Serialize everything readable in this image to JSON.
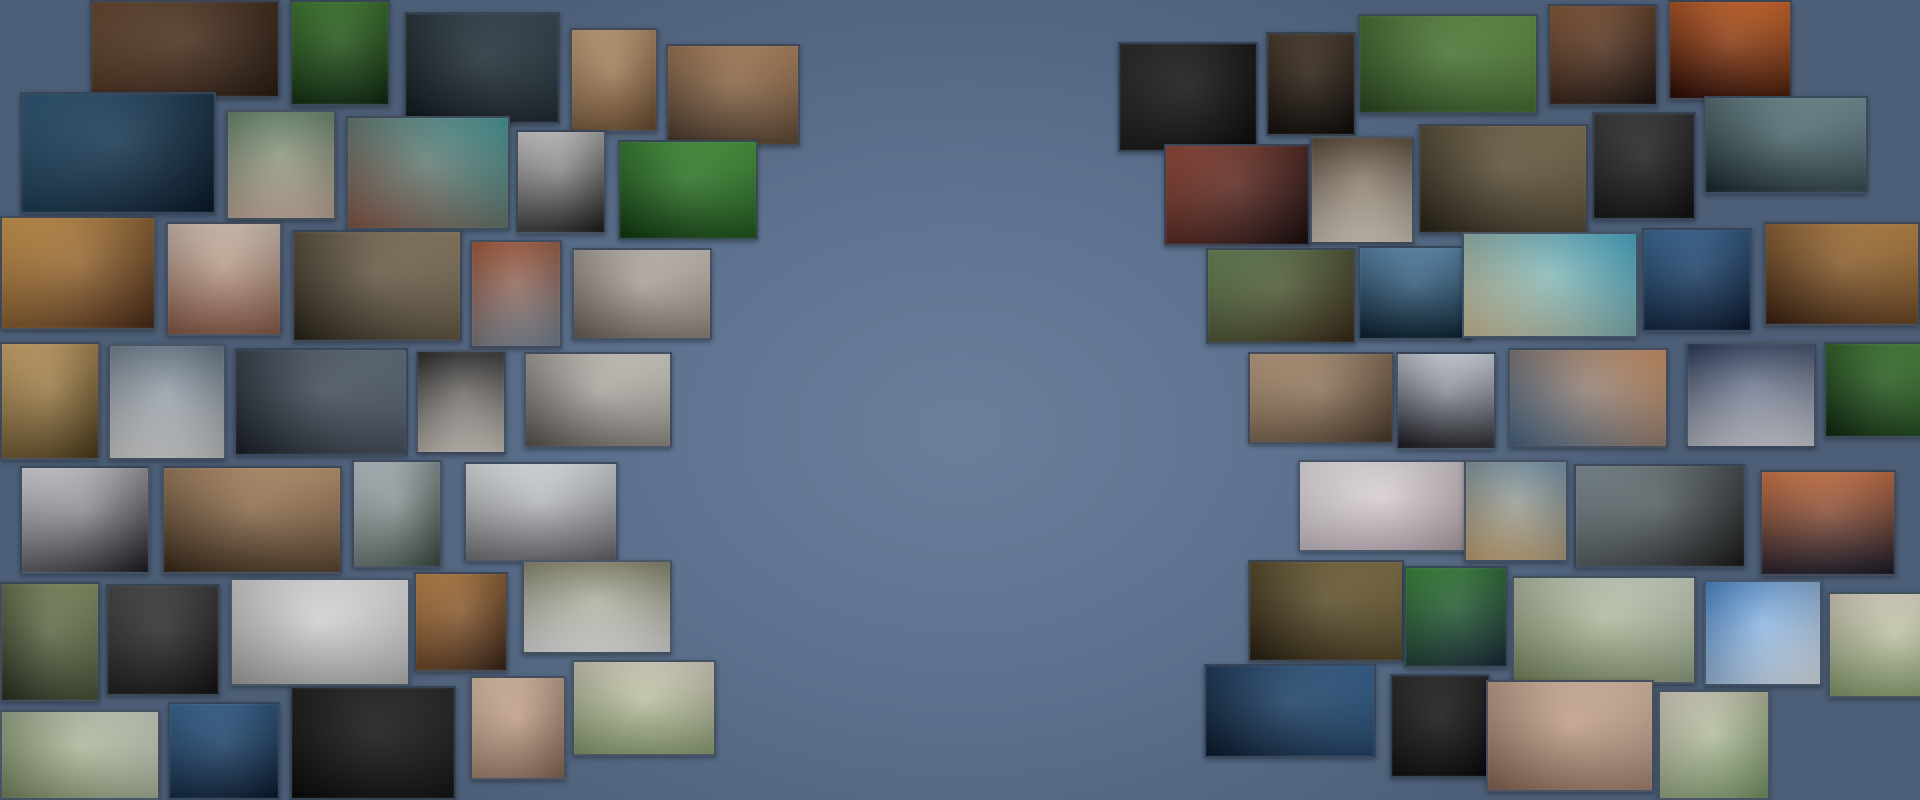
{
  "scene": {
    "background": "#5e7390",
    "frame_color": "#3a485c"
  },
  "walls": {
    "left": [
      {
        "subject": "medieval-crowd",
        "colors": [
          "#6b4a32",
          "#2a1c12"
        ]
      },
      {
        "subject": "peacock-feathers",
        "colors": [
          "#3f7a2e",
          "#0f2a10"
        ]
      },
      {
        "subject": "office-interior",
        "colors": [
          "#3a4a55",
          "#10181e"
        ]
      },
      {
        "subject": "white-suv",
        "colors": [
          "#c9a77e",
          "#6a4a2e"
        ]
      },
      {
        "subject": "hiker-mountains",
        "colors": [
          "#b88a62",
          "#4a3a2c"
        ]
      },
      {
        "subject": "underwater-whale",
        "colors": [
          "#2f5a7a",
          "#0a1a2a"
        ]
      },
      {
        "subject": "lakeside-village",
        "colors": [
          "#6a8a6e",
          "#c9b0a0"
        ]
      },
      {
        "subject": "mountain-lake-town",
        "colors": [
          "#4aa0a0",
          "#8a5a4a"
        ]
      },
      {
        "subject": "man-in-tuxedo",
        "colors": [
          "#d8d8d8",
          "#1a1a1a"
        ]
      },
      {
        "subject": "forest-waterfall",
        "colors": [
          "#4aa040",
          "#103a10"
        ]
      },
      {
        "subject": "wine-and-grapes",
        "colors": [
          "#d8a050",
          "#4a2a18"
        ]
      },
      {
        "subject": "man-on-beach",
        "colors": [
          "#d8c8b8",
          "#8a5a48"
        ]
      },
      {
        "subject": "old-woman-glasses",
        "colors": [
          "#9a8a70",
          "#2a2418"
        ]
      },
      {
        "subject": "mountain-hotel",
        "colors": [
          "#a85a3a",
          "#7a8a9a"
        ]
      },
      {
        "subject": "river-estuary",
        "colors": [
          "#d8d0c8",
          "#6a6258"
        ]
      },
      {
        "subject": "savanna-trees",
        "colors": [
          "#d8b070",
          "#4a3a1a"
        ]
      },
      {
        "subject": "white-jeep",
        "colors": [
          "#6a7a8a",
          "#d8d8d8"
        ]
      },
      {
        "subject": "silver-sports-car",
        "colors": [
          "#6a7888",
          "#1a2028"
        ]
      },
      {
        "subject": "runway-model",
        "colors": [
          "#2a2a2a",
          "#d8d0c8"
        ]
      },
      {
        "subject": "white-dog",
        "colors": [
          "#e8e4dc",
          "#5a5450"
        ]
      },
      {
        "subject": "white-cat-crown",
        "colors": [
          "#e8e8ec",
          "#1a1a22"
        ]
      },
      {
        "subject": "girl-headphones",
        "colors": [
          "#c8a078",
          "#3a2a1a"
        ]
      },
      {
        "subject": "snowy-mountain",
        "colors": [
          "#c8d0d8",
          "#3a4a40"
        ]
      },
      {
        "subject": "woman-in-snow",
        "colors": [
          "#e8ecf0",
          "#6a6a70"
        ]
      },
      {
        "subject": "dragon-head",
        "colors": [
          "#8a9a6a",
          "#2a3020"
        ]
      },
      {
        "subject": "runner-dark",
        "colors": [
          "#4a4a4a",
          "#121212"
        ]
      },
      {
        "subject": "bride-white-dress",
        "colors": [
          "#f0f0f0",
          "#a8a8a8"
        ]
      },
      {
        "subject": "grand-hall",
        "colors": [
          "#c88a4a",
          "#3a2418"
        ]
      },
      {
        "subject": "man-white-suit",
        "colors": [
          "#8a8a70",
          "#e8e8e8"
        ]
      },
      {
        "subject": "penguins-cats",
        "colors": [
          "#d8e0d0",
          "#7a8a60"
        ]
      },
      {
        "subject": "blue-parrot",
        "colors": [
          "#3a6a9a",
          "#0a1a30"
        ]
      },
      {
        "subject": "dark-forest",
        "colors": [
          "#2a2a2a",
          "#0a0a0a"
        ]
      },
      {
        "subject": "blonde-woman",
        "colors": [
          "#e8c8b0",
          "#8a6a58"
        ]
      },
      {
        "subject": "cats-and-flowers",
        "colors": [
          "#e0d8c8",
          "#8aa070"
        ]
      }
    ],
    "right": [
      {
        "subject": "dark-cave",
        "colors": [
          "#2a2a2a",
          "#0a0a0a"
        ]
      },
      {
        "subject": "candle-room",
        "colors": [
          "#4a3a2a",
          "#0e0a08"
        ]
      },
      {
        "subject": "green-valley-village",
        "colors": [
          "#6a9a4a",
          "#2a4a20"
        ]
      },
      {
        "subject": "robot-bear",
        "colors": [
          "#8a5a3a",
          "#1a1210"
        ]
      },
      {
        "subject": "fire-dancer",
        "colors": [
          "#d86a2a",
          "#2a0a04"
        ]
      },
      {
        "subject": "red-mountain-peaks",
        "colors": [
          "#9a4a3a",
          "#1a0e10"
        ]
      },
      {
        "subject": "snarling-dog",
        "colors": [
          "#5a4a3a",
          "#d8d0c0"
        ]
      },
      {
        "subject": "old-wizard-army",
        "colors": [
          "#8a7a5a",
          "#2a2418"
        ]
      },
      {
        "subject": "dark-haired-man",
        "colors": [
          "#3a3a3a",
          "#0e0e0e"
        ]
      },
      {
        "subject": "cave-explorer",
        "colors": [
          "#7a9aa0",
          "#1a2a2e"
        ]
      },
      {
        "subject": "bear-in-water",
        "colors": [
          "#6a8a5a",
          "#3a2a18"
        ]
      },
      {
        "subject": "blue-parrot",
        "colors": [
          "#5a8ab0",
          "#0a2030"
        ]
      },
      {
        "subject": "tropical-beach",
        "colors": [
          "#4ab0d0",
          "#d8c8a0"
        ]
      },
      {
        "subject": "futuristic-city",
        "colors": [
          "#3a6a9a",
          "#0a1830"
        ]
      },
      {
        "subject": "golden-skull",
        "colors": [
          "#c8904a",
          "#3a2010"
        ]
      },
      {
        "subject": "kitchen-girl",
        "colors": [
          "#c8a888",
          "#4a3a2a"
        ]
      },
      {
        "subject": "penguin",
        "colors": [
          "#d8e0e8",
          "#1a1a22"
        ]
      },
      {
        "subject": "eiffel-tower",
        "colors": [
          "#d89a6a",
          "#4a6a8a"
        ]
      },
      {
        "subject": "astronaut-space",
        "colors": [
          "#2a3a5a",
          "#d8d8e0"
        ]
      },
      {
        "subject": "forest-stream",
        "colors": [
          "#4a8a3a",
          "#0e2a10"
        ]
      },
      {
        "subject": "bride-flowers",
        "colors": [
          "#f0ecf0",
          "#b8a8b0"
        ]
      },
      {
        "subject": "robed-figure",
        "colors": [
          "#7a9ab0",
          "#c8a878"
        ]
      },
      {
        "subject": "darth-vader-rocks",
        "colors": [
          "#8a9aa0",
          "#1a1a1a"
        ]
      },
      {
        "subject": "astronaut-planet",
        "colors": [
          "#d87a4a",
          "#1a1a2a"
        ]
      },
      {
        "subject": "dragon-head",
        "colors": [
          "#8a7a4a",
          "#2a2010"
        ]
      },
      {
        "subject": "soccer-player",
        "colors": [
          "#3a8a3a",
          "#1a2a3a"
        ]
      },
      {
        "subject": "penguins-cats",
        "colors": [
          "#d8e0d0",
          "#7a8a60"
        ]
      },
      {
        "subject": "christmas-tree",
        "colors": [
          "#4a8ad0",
          "#e8f0f8"
        ]
      },
      {
        "subject": "cats-and-flowers",
        "colors": [
          "#e0d8c8",
          "#8aa070"
        ]
      },
      {
        "subject": "blue-parrot",
        "colors": [
          "#3a6a9a",
          "#0a1a30"
        ]
      },
      {
        "subject": "dark-forest",
        "colors": [
          "#2a2a2a",
          "#0a0a0a"
        ]
      },
      {
        "subject": "blonde-woman",
        "colors": [
          "#e8c8b0",
          "#8a6a58"
        ]
      },
      {
        "subject": "penguins-flowers",
        "colors": [
          "#e0d8c8",
          "#7a9a68"
        ]
      }
    ]
  }
}
